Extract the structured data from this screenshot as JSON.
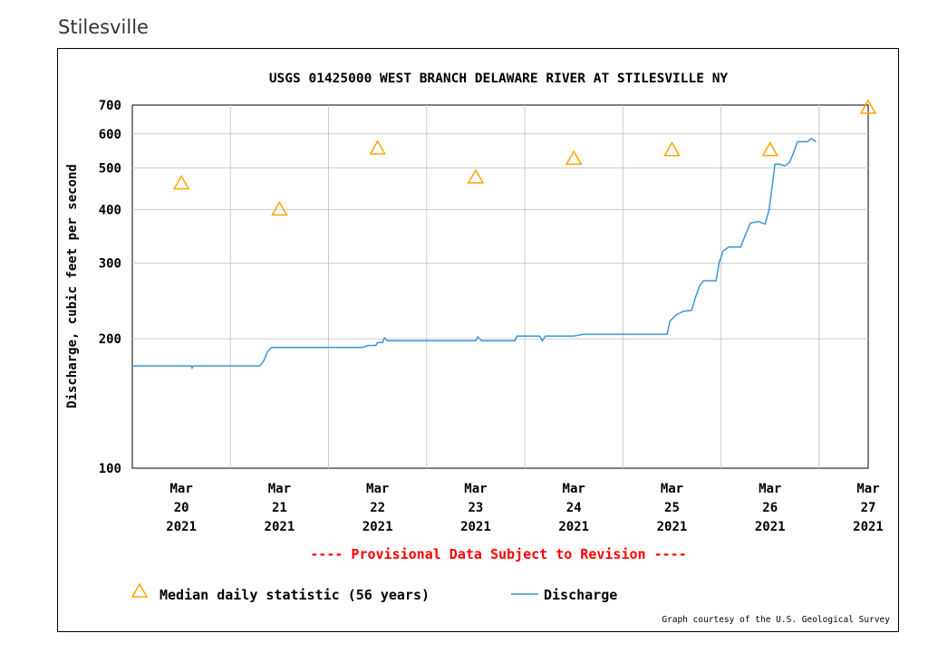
{
  "page": {
    "heading": "Stilesville"
  },
  "chart_data": {
    "type": "line",
    "title": "USGS 01425000 WEST BRANCH DELAWARE RIVER AT STILESVILLE NY",
    "ylabel": "Discharge, cubic feet per second",
    "xlabel": "",
    "y_scale": "log",
    "ylim": [
      100,
      700
    ],
    "y_ticks": [
      100,
      200,
      300,
      400,
      500,
      600,
      700
    ],
    "x_range_days": [
      0,
      7.5
    ],
    "x_ticks": [
      {
        "day": 0.5,
        "label": [
          "Mar",
          "20",
          "2021"
        ]
      },
      {
        "day": 1.5,
        "label": [
          "Mar",
          "21",
          "2021"
        ]
      },
      {
        "day": 2.5,
        "label": [
          "Mar",
          "22",
          "2021"
        ]
      },
      {
        "day": 3.5,
        "label": [
          "Mar",
          "23",
          "2021"
        ]
      },
      {
        "day": 4.5,
        "label": [
          "Mar",
          "24",
          "2021"
        ]
      },
      {
        "day": 5.5,
        "label": [
          "Mar",
          "25",
          "2021"
        ]
      },
      {
        "day": 6.5,
        "label": [
          "Mar",
          "26",
          "2021"
        ]
      },
      {
        "day": 7.5,
        "label": [
          "Mar",
          "27",
          "2021"
        ]
      }
    ],
    "grid": true,
    "provisional_note": "---- Provisional Data Subject to Revision ----",
    "credit": "Graph courtesy of the U.S. Geological Survey",
    "legend": [
      {
        "name": "Median daily statistic (56 years)",
        "marker": "triangle",
        "color": "#FFA500"
      },
      {
        "name": "Discharge",
        "marker": "line",
        "color": "#3B95D6"
      }
    ],
    "series": [
      {
        "name": "Median daily statistic (56 years)",
        "type": "scatter",
        "points": [
          {
            "day": 0.5,
            "value": 460
          },
          {
            "day": 1.5,
            "value": 400
          },
          {
            "day": 2.5,
            "value": 555
          },
          {
            "day": 3.5,
            "value": 475
          },
          {
            "day": 4.5,
            "value": 525
          },
          {
            "day": 5.5,
            "value": 550
          },
          {
            "day": 6.5,
            "value": 550
          },
          {
            "day": 7.5,
            "value": 690
          }
        ]
      },
      {
        "name": "Discharge",
        "type": "line",
        "points": [
          [
            0.0,
            173
          ],
          [
            0.6,
            173
          ],
          [
            0.61,
            171
          ],
          [
            0.62,
            173
          ],
          [
            1.3,
            173
          ],
          [
            1.34,
            178
          ],
          [
            1.38,
            187
          ],
          [
            1.42,
            191
          ],
          [
            2.35,
            191
          ],
          [
            2.4,
            193
          ],
          [
            2.48,
            193
          ],
          [
            2.5,
            196
          ],
          [
            2.55,
            196
          ],
          [
            2.57,
            201
          ],
          [
            2.6,
            198
          ],
          [
            3.5,
            198
          ],
          [
            3.52,
            202
          ],
          [
            3.56,
            198
          ],
          [
            3.9,
            198
          ],
          [
            3.92,
            203
          ],
          [
            4.15,
            203
          ],
          [
            4.18,
            198
          ],
          [
            4.21,
            203
          ],
          [
            4.5,
            203
          ],
          [
            4.6,
            205
          ],
          [
            5.45,
            205
          ],
          [
            5.48,
            220
          ],
          [
            5.55,
            228
          ],
          [
            5.62,
            232
          ],
          [
            5.7,
            233
          ],
          [
            5.74,
            250
          ],
          [
            5.78,
            265
          ],
          [
            5.82,
            273
          ],
          [
            5.95,
            273
          ],
          [
            5.98,
            300
          ],
          [
            6.02,
            320
          ],
          [
            6.08,
            327
          ],
          [
            6.2,
            327
          ],
          [
            6.25,
            350
          ],
          [
            6.3,
            372
          ],
          [
            6.38,
            375
          ],
          [
            6.45,
            370
          ],
          [
            6.49,
            400
          ],
          [
            6.52,
            450
          ],
          [
            6.55,
            510
          ],
          [
            6.6,
            510
          ],
          [
            6.65,
            505
          ],
          [
            6.7,
            515
          ],
          [
            6.75,
            550
          ],
          [
            6.78,
            575
          ],
          [
            6.88,
            575
          ],
          [
            6.92,
            585
          ],
          [
            6.97,
            575
          ]
        ]
      }
    ]
  }
}
